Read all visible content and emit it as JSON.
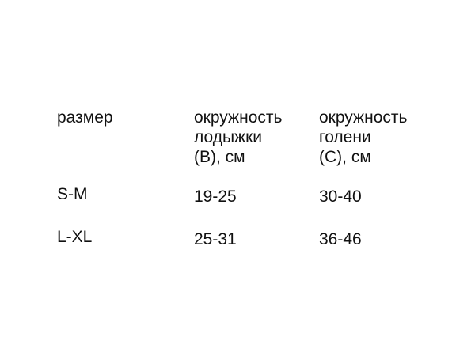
{
  "table": {
    "headers": [
      [
        "размер"
      ],
      [
        "окружность",
        "лодыжки",
        "(В), см"
      ],
      [
        "окружность",
        "голени",
        "(С), см"
      ]
    ],
    "rows": [
      [
        "S-M",
        "19-25",
        "30-40"
      ],
      [
        "L-XL",
        "25-31",
        "36-46"
      ]
    ]
  }
}
